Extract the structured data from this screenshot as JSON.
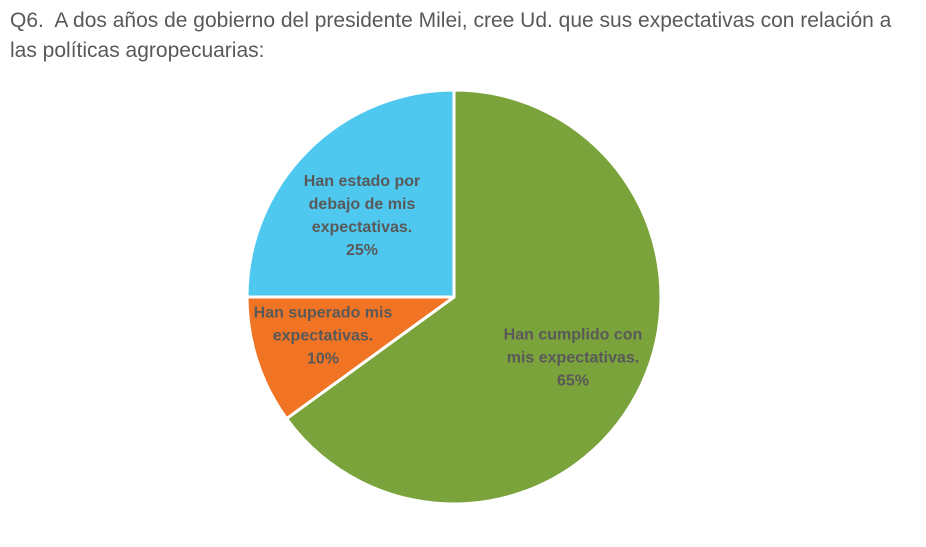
{
  "title": "Q6.  A dos años de gobierno del presidente Milei, cree Ud. que sus expectativas con relación a las políticas agropecuarias:",
  "chart_data": {
    "type": "pie",
    "title": "Q6.  A dos años de gobierno del presidente Milei, cree Ud. que sus expectativas con relación a las políticas agropecuarias:",
    "slices": [
      {
        "label": "Han cumplido con mis expectativas.",
        "value": 65,
        "percent_label": "65%",
        "color": "#7BA33C"
      },
      {
        "label": "Han superado mis expectativas.",
        "value": 10,
        "percent_label": "10%",
        "color": "#F07423"
      },
      {
        "label": "Han estado por debajo de mis expectativas.",
        "value": 25,
        "percent_label": "25%",
        "color": "#4FC8F0"
      }
    ],
    "start_angle_deg": 0,
    "direction": "clockwise",
    "legend": "none",
    "label_placement": "inside",
    "slice_border_color": "#ffffff"
  },
  "pie_labels": {
    "green": {
      "lines": [
        "Han cumplido con",
        "mis expectativas."
      ],
      "pct": "65%"
    },
    "orange": {
      "lines": [
        "Han superado mis",
        "expectativas."
      ],
      "pct": "10%"
    },
    "blue": {
      "lines": [
        "Han estado por",
        "debajo de mis",
        "expectativas."
      ],
      "pct": "25%"
    }
  },
  "colors": {
    "green": "#7BA33C",
    "orange": "#F07423",
    "blue": "#4FC8F0",
    "label_text": "#595959",
    "title_text": "#595959",
    "background": "#ffffff"
  }
}
